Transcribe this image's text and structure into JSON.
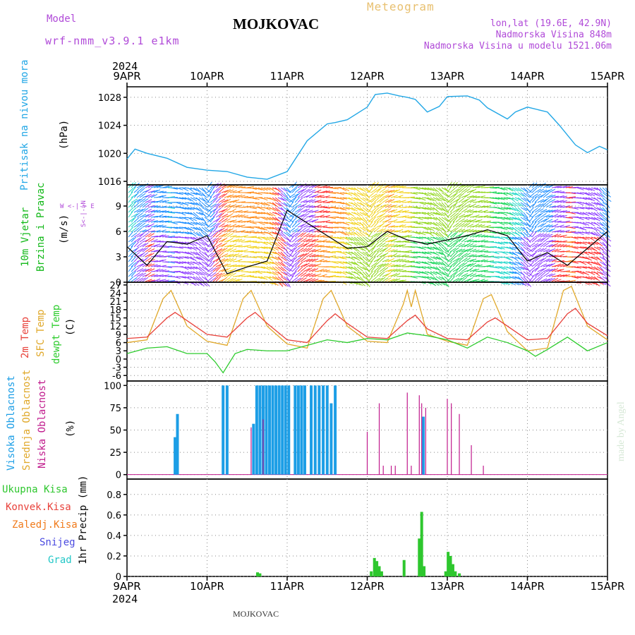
{
  "header": {
    "model_label": "Model",
    "model_name": "wrf-nmm_v3.9.1 e1km",
    "location": "MOJKOVAC",
    "title": "Meteogram",
    "coords": "lon,lat (19.6E, 42.9N)",
    "altitude": "Nadmorska Visina 848m",
    "model_altitude": "Nadmorska Visina u modelu 1521.06m",
    "year": "2024",
    "footer_location": "MOJKOVAC",
    "credit": "made by Angel"
  },
  "colors": {
    "pressure": "#22a7e6",
    "wind_label": "#12b818",
    "temp2m": "#e8413a",
    "sfc": "#e0a82a",
    "dewpt": "#2ecc2e",
    "high_cloud": "#1c9ee6",
    "mid_cloud": "#e0a82a",
    "low_cloud": "#c01a8c",
    "total_precip": "#2ec72e",
    "conv": "#e8413a",
    "freezing": "#f07a1a",
    "snow": "#4a4ae0",
    "graupel": "#22c7c7",
    "purple_text": "#b04ad8",
    "title_orange": "#e8c070"
  },
  "time_axis": {
    "top_ticks": [
      "9APR",
      "10APR",
      "11APR",
      "12APR",
      "13APR",
      "14APR",
      "15APR"
    ],
    "bottom_ticks": [
      "9APR",
      "10APR",
      "11APR",
      "12APR",
      "13APR",
      "14APR",
      "15APR"
    ]
  },
  "panels": {
    "pressure": {
      "label": "Pritisak na nivou mora",
      "unit": "(hPa)"
    },
    "wind": {
      "label1": "10m Vjetar",
      "label2": "Brzina i Pravac",
      "unit": "(m/s)",
      "compass": "W <-|-> E",
      "compass_ns": "S<-|->N"
    },
    "temp": {
      "label1": "2m Temp",
      "label2": "SFC Temp",
      "label3": "dewpt Temp",
      "unit": "(C)"
    },
    "cloud": {
      "label1": "Visoka Oblacnost",
      "label2": "Srednja Oblacnost",
      "label3": "Niska Oblacnost",
      "unit": "(%)"
    },
    "precip": {
      "unit": "1hr Precip (mm)",
      "legend": [
        "Ukupna Kisa",
        "Konvek.Kisa",
        "Zaledj.Kisa",
        "Snijeg",
        "Grad"
      ]
    }
  },
  "chart_data": [
    {
      "type": "line",
      "title": "",
      "ylabel": "Pritisak na nivou mora (hPa)",
      "ylim": [
        1015.5,
        1029.5
      ],
      "yticks": [
        1016,
        1020,
        1024,
        1028
      ],
      "series": [
        {
          "name": "Pritisak na nivou mora",
          "x": [
            0,
            0.1,
            0.25,
            0.5,
            0.75,
            1.0,
            1.25,
            1.5,
            1.75,
            2.0,
            2.25,
            2.5,
            2.6,
            2.75,
            3.0,
            3.1,
            3.25,
            3.4,
            3.5,
            3.6,
            3.75,
            3.9,
            4.0,
            4.25,
            4.4,
            4.5,
            4.75,
            4.85,
            5.0,
            5.25,
            5.4,
            5.6,
            5.75,
            5.9,
            6.0
          ],
          "y": [
            1019.2,
            1020.6,
            1020.0,
            1019.3,
            1018.0,
            1017.6,
            1017.4,
            1016.6,
            1016.3,
            1017.4,
            1021.8,
            1024.2,
            1024.4,
            1024.8,
            1026.6,
            1028.4,
            1028.6,
            1028.2,
            1028.0,
            1027.7,
            1025.9,
            1026.7,
            1028.1,
            1028.2,
            1027.6,
            1026.5,
            1024.9,
            1025.9,
            1026.6,
            1025.9,
            1024.0,
            1021.2,
            1020.1,
            1021.0,
            1020.5
          ]
        }
      ]
    },
    {
      "type": "line",
      "title": "",
      "ylabel": "10m Vjetar Brzina i Pravac (m/s)",
      "ylim": [
        0,
        11.5
      ],
      "yticks": [
        0,
        3,
        6,
        9
      ],
      "series": [
        {
          "name": "Brzina",
          "x": [
            0,
            0.25,
            0.5,
            0.75,
            1.0,
            1.25,
            1.5,
            1.75,
            2.0,
            2.25,
            2.5,
            2.75,
            3.0,
            3.25,
            3.5,
            3.75,
            4.0,
            4.25,
            4.5,
            4.75,
            5.0,
            5.25,
            5.5,
            5.75,
            6.0
          ],
          "y": [
            4.2,
            2.0,
            4.8,
            4.5,
            5.5,
            1.0,
            1.8,
            2.5,
            8.5,
            7.0,
            5.5,
            4.0,
            4.2,
            6.0,
            5.0,
            4.5,
            5.0,
            5.5,
            6.2,
            5.5,
            2.5,
            3.5,
            2.0,
            4.0,
            6.0
          ]
        }
      ]
    },
    {
      "type": "line",
      "title": "",
      "ylabel": "(C)",
      "ylim": [
        -8,
        28
      ],
      "yticks": [
        -6,
        -3,
        0,
        3,
        6,
        9,
        12,
        15,
        18,
        21,
        24,
        27
      ],
      "series": [
        {
          "name": "2m Temp",
          "x": [
            0,
            0.25,
            0.5,
            0.6,
            0.75,
            1.0,
            1.25,
            1.5,
            1.6,
            1.75,
            2.0,
            2.25,
            2.5,
            2.6,
            2.75,
            3.0,
            3.25,
            3.5,
            3.6,
            3.75,
            4.0,
            4.25,
            4.5,
            4.6,
            4.75,
            5.0,
            5.25,
            5.5,
            5.6,
            5.75,
            6.0
          ],
          "y": [
            7.5,
            8.0,
            15.0,
            17.0,
            14.0,
            9.0,
            8.0,
            15.0,
            17.0,
            13.0,
            7.0,
            6.0,
            14.0,
            16.5,
            13.0,
            8.0,
            7.5,
            14.0,
            16.0,
            11.0,
            7.5,
            7.0,
            13.5,
            15.0,
            12.0,
            7.0,
            7.5,
            16.5,
            18.5,
            13.0,
            8.5
          ]
        },
        {
          "name": "SFC Temp",
          "x": [
            0,
            0.25,
            0.45,
            0.55,
            0.75,
            1.0,
            1.25,
            1.45,
            1.55,
            1.75,
            2.0,
            2.25,
            2.45,
            2.55,
            2.75,
            3.0,
            3.25,
            3.45,
            3.5,
            3.55,
            3.6,
            3.75,
            4.0,
            4.25,
            4.45,
            4.55,
            4.75,
            5.0,
            5.25,
            5.45,
            5.55,
            5.75,
            6.0
          ],
          "y": [
            6.0,
            7.0,
            22.0,
            25.0,
            12.0,
            6.5,
            5.0,
            22.0,
            25.0,
            12.0,
            5.5,
            4.0,
            22.0,
            25.0,
            12.0,
            6.5,
            6.0,
            20.0,
            25.0,
            19.0,
            25.0,
            9.0,
            6.5,
            5.0,
            22.0,
            23.5,
            10.0,
            3.0,
            4.0,
            25.0,
            26.5,
            12.0,
            7.0
          ]
        },
        {
          "name": "dewpt Temp",
          "x": [
            0,
            0.25,
            0.5,
            0.75,
            1.0,
            1.1,
            1.2,
            1.35,
            1.5,
            1.75,
            2.0,
            2.25,
            2.5,
            2.75,
            3.0,
            3.25,
            3.5,
            3.75,
            4.0,
            4.25,
            4.5,
            4.75,
            5.0,
            5.1,
            5.25,
            5.5,
            5.75,
            6.0
          ],
          "y": [
            2.0,
            4.0,
            4.5,
            2.0,
            2.0,
            -1.0,
            -5.0,
            2.0,
            3.5,
            3.0,
            3.0,
            5.0,
            7.0,
            6.0,
            7.5,
            7.0,
            9.5,
            8.5,
            7.0,
            4.0,
            8.0,
            6.0,
            3.0,
            1.0,
            3.5,
            8.0,
            3.0,
            6.0
          ]
        }
      ]
    },
    {
      "type": "bar",
      "title": "",
      "ylabel": "(%)",
      "ylim": [
        -5,
        105
      ],
      "yticks": [
        0,
        25,
        50,
        75,
        100
      ],
      "series": [
        {
          "name": "Visoka Oblacnost",
          "x": [
            0.6,
            0.63,
            1.2,
            1.25,
            1.58,
            1.62,
            1.66,
            1.7,
            1.74,
            1.78,
            1.82,
            1.86,
            1.9,
            1.94,
            1.98,
            2.02,
            2.1,
            2.14,
            2.18,
            2.22,
            2.3,
            2.35,
            2.4,
            2.45,
            2.5,
            2.55,
            2.6,
            3.7
          ],
          "y": [
            42,
            68,
            100,
            100,
            57,
            100,
            100,
            100,
            100,
            100,
            100,
            100,
            100,
            100,
            100,
            100,
            100,
            100,
            100,
            100,
            100,
            100,
            100,
            100,
            100,
            80,
            100,
            65
          ]
        },
        {
          "name": "Niska Oblacnost",
          "x": [
            1.55,
            1.7,
            3.0,
            3.15,
            3.2,
            3.3,
            3.35,
            3.5,
            3.55,
            3.65,
            3.68,
            3.73,
            4.0,
            4.05,
            4.15,
            4.3,
            4.45
          ],
          "y": [
            53,
            62,
            48,
            80,
            10,
            10,
            10,
            92,
            10,
            89,
            80,
            75,
            85,
            80,
            68,
            33,
            10
          ]
        }
      ]
    },
    {
      "type": "bar",
      "title": "",
      "ylabel": "1hr Precip (mm)",
      "ylim": [
        0,
        0.95
      ],
      "yticks": [
        0,
        0.2,
        0.4,
        0.6,
        0.8
      ],
      "series": [
        {
          "name": "Ukupna Kisa",
          "x": [
            1.63,
            1.66,
            3.05,
            3.09,
            3.12,
            3.15,
            3.18,
            3.46,
            3.65,
            3.68,
            3.71,
            3.98,
            4.01,
            4.04,
            4.07,
            4.1,
            4.15
          ],
          "y": [
            0.04,
            0.03,
            0.05,
            0.18,
            0.15,
            0.1,
            0.05,
            0.16,
            0.37,
            0.63,
            0.1,
            0.05,
            0.24,
            0.2,
            0.12,
            0.05,
            0.03
          ]
        }
      ]
    }
  ]
}
